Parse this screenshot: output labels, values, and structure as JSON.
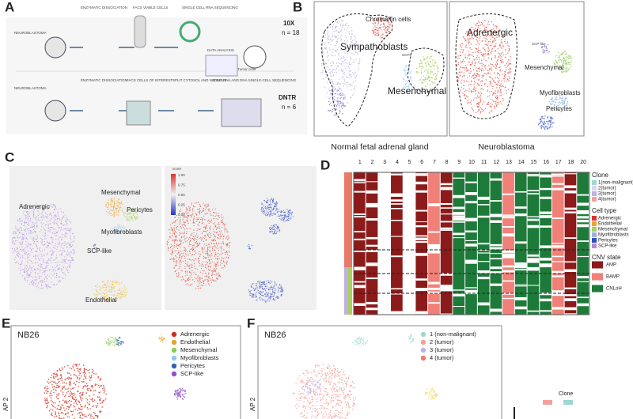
{
  "panel_a": {
    "label": "A",
    "texts": [
      "NEUROBLASTOMA",
      "ENZYMATIC DISSOCIATION",
      "FACS VIABLE CELLS",
      "SINGLE CELL RNA SEQUENCING",
      "DATA ANALYSIS",
      "Tumor cells",
      "NEUROBLASTOMA",
      "ENZYMATIC DISSOCIATION",
      "FACS CELLS OF INTEREST",
      "SPLIT CYTOSOL AND NUCLEUS",
      "JOINT RNA AND DNA SINGLE-CELL SEQUENCING"
    ],
    "platforms": [
      {
        "name": "10X",
        "n": "n = 18"
      },
      {
        "name": "DNTR",
        "n": "n = 6"
      }
    ]
  },
  "panel_b": {
    "label": "B",
    "left": {
      "labels": [
        "Chromaffin cells",
        "Sympathoblasts",
        "SCPs",
        "Mesenchymal"
      ],
      "caption": "Normal fetal adrenal gland"
    },
    "right": {
      "labels": [
        "Adrenergic",
        "SCP-like",
        "Mesenchymal",
        "Myofibroblasts",
        "Pericytes"
      ],
      "caption": "Neuroblastoma"
    }
  },
  "panel_c": {
    "label": "C",
    "labels": [
      "Adrenergic",
      "Mesenchymal",
      "Pericytes",
      "Myofibroblasts",
      "SCP-like",
      "Endothelial"
    ],
    "colorbar_title": "score",
    "colorbar_ticks": [
      "1.00",
      "0.75",
      "0.50",
      "0.25",
      "0.00"
    ]
  },
  "panel_d": {
    "label": "D",
    "columns": [
      "1",
      "2",
      "3",
      "4",
      "5",
      "6",
      "7",
      "8",
      "9",
      "10",
      "11",
      "12",
      "13",
      "14",
      "15",
      "16",
      "17",
      "18",
      "20"
    ],
    "legends": [
      {
        "title": "Clone",
        "items": [
          "1(non-malignant)",
          "2(tumor)",
          "3(tumor)",
          "4(tumor)"
        ]
      },
      {
        "title": "Cell type",
        "items": [
          "Adrenergic",
          "Endothelial",
          "Mesenchymal",
          "Myofibroblasts",
          "Pericytes",
          "SCP-like"
        ]
      },
      {
        "title": "CNV state",
        "items": [
          "AMP",
          "BAMP",
          "CNLoH"
        ]
      }
    ]
  },
  "panel_e": {
    "label": "E",
    "sample": "NB26",
    "axis": "AP 2",
    "legend": [
      "Adrenergic",
      "Endothelial",
      "Mesenchymal",
      "Myofibroblasts",
      "Pericytes",
      "SCP-like"
    ]
  },
  "panel_f": {
    "label": "F",
    "sample": "NB26",
    "axis": "AP 2",
    "legend": [
      "1 (non-malignant)",
      "2 (tumor)",
      "3 (tumor)",
      "4 (tumor)"
    ]
  },
  "panel_g": {
    "legend_title": "Clone"
  }
}
